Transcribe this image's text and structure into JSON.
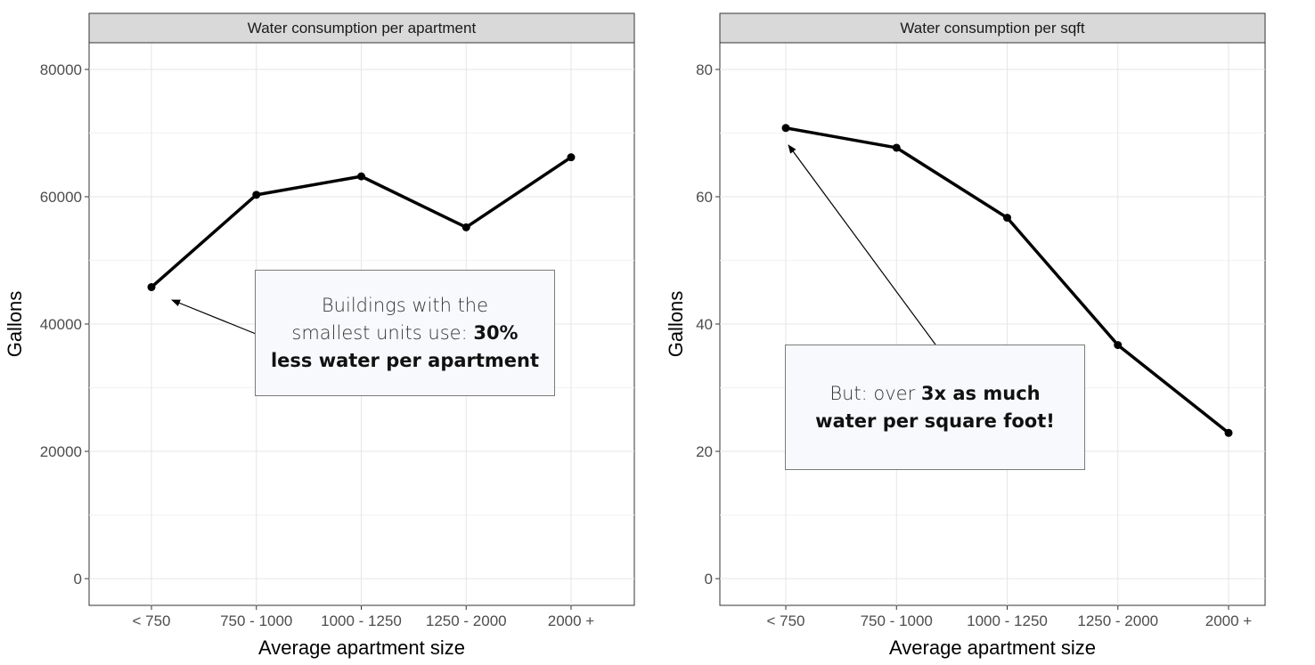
{
  "chart_data": [
    {
      "type": "line",
      "title": "Water consumption per apartment",
      "xlabel": "Average apartment size",
      "ylabel": "Gallons",
      "categories": [
        "< 750",
        "750 - 1000",
        "1000 - 1250",
        "1250 - 2000",
        "2000 +"
      ],
      "values": [
        45800,
        60300,
        63200,
        55200,
        66200
      ],
      "ylim": [
        0,
        80000
      ],
      "yticks": [
        "0",
        "20000",
        "40000",
        "60000",
        "80000"
      ],
      "grid": true,
      "annotation": {
        "parts": [
          "Buildings with the smallest units use: ",
          "30% less water per apartment"
        ],
        "line1": "Buildings with the",
        "line2_light": "smallest units use: ",
        "line2_bold": "30%",
        "line3_bold": "less water per apartment",
        "arrow_to_category": "< 750"
      }
    },
    {
      "type": "line",
      "title": "Water consumption per sqft",
      "xlabel": "Average apartment size",
      "ylabel": "Gallons",
      "categories": [
        "< 750",
        "750 - 1000",
        "1000 - 1250",
        "1250 - 2000",
        "2000 +"
      ],
      "values": [
        70.8,
        67.7,
        56.7,
        36.7,
        22.9
      ],
      "ylim": [
        0,
        80
      ],
      "yticks": [
        "0",
        "20",
        "40",
        "60",
        "80"
      ],
      "grid": true,
      "annotation": {
        "line1_light": "But: over ",
        "line1_bold": "3x as much",
        "line2_bold": "water per square foot!",
        "arrow_to_category": "< 750"
      }
    }
  ]
}
